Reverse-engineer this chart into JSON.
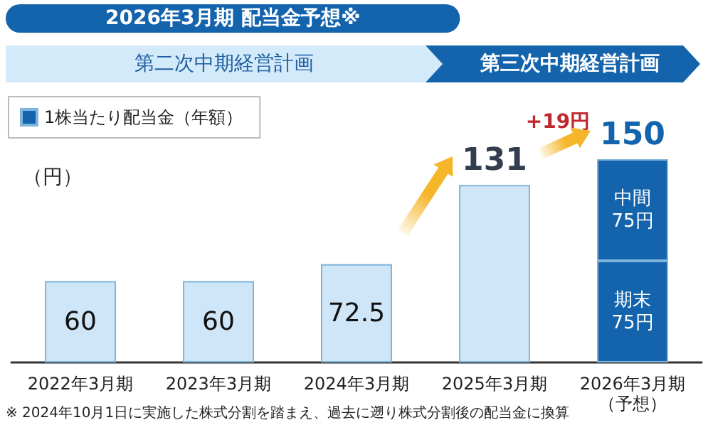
{
  "chart_data": {
    "type": "bar",
    "title": "2026年3月期 配当金予想※",
    "ylabel": "（円）",
    "categories": [
      "2022年3月期",
      "2023年3月期",
      "2024年3月期",
      "2025年3月期",
      "2026年3月期（予想）"
    ],
    "stacked": true,
    "series": [
      {
        "name": "1株当たり配当金（年額）",
        "color": "#1464ad",
        "colors": [
          "#cfe6f8",
          "#cfe6f8",
          "#cfe6f8",
          "#cfe6f8",
          "#1464ad"
        ],
        "values": [
          60,
          60,
          72.5,
          131,
          75
        ],
        "value_labels": [
          null,
          null,
          null,
          null,
          "期末75円"
        ]
      },
      {
        "color": "#1464ad",
        "values": [
          null,
          null,
          null,
          null,
          75
        ],
        "value_labels": [
          null,
          null,
          null,
          null,
          "中間75円"
        ]
      }
    ],
    "totals": [
      "60",
      "60",
      "72.5",
      "131",
      "150"
    ],
    "legend": "top left",
    "tick_labels": "x",
    "annotations": [
      "第二次中期経営計画",
      "第三次中期経営計画",
      {
        "text": "+19円",
        "x": "2026年3月期（予想）",
        "y": 150
      },
      "※ 2024年10月1日に実施した株式分割を踏まえ、過去に遡り株式分割後の配当金に換算"
    ]
  }
}
